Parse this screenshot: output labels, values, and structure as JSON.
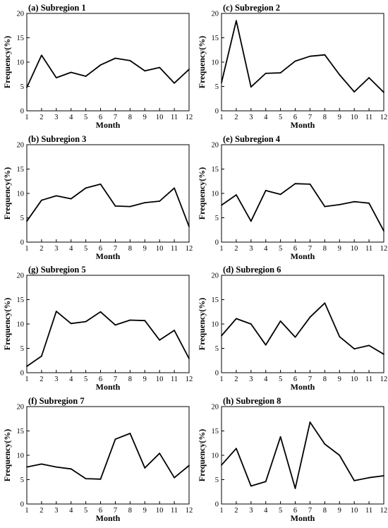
{
  "chart_data": [
    {
      "type": "line",
      "title": "(a) Subregion 1",
      "xlabel": "Month",
      "ylabel": "Frequency(%)",
      "x": [
        1,
        2,
        3,
        4,
        5,
        6,
        7,
        8,
        9,
        10,
        11,
        12
      ],
      "values": [
        4.8,
        11.4,
        6.8,
        7.9,
        7.1,
        9.4,
        10.8,
        10.3,
        8.2,
        8.9,
        5.7,
        8.5
      ],
      "xlim": [
        1,
        12
      ],
      "ylim": [
        0,
        20
      ],
      "yticks": [
        0,
        5,
        10,
        15,
        20
      ],
      "grid": false
    },
    {
      "type": "line",
      "title": "(c) Subregion 2",
      "xlabel": "Month",
      "ylabel": "Frequency(%)",
      "x": [
        1,
        2,
        3,
        4,
        5,
        6,
        7,
        8,
        9,
        10,
        11,
        12
      ],
      "values": [
        5.8,
        18.5,
        4.9,
        7.7,
        7.8,
        10.2,
        11.2,
        11.5,
        7.4,
        3.9,
        6.8,
        3.8
      ],
      "xlim": [
        1,
        12
      ],
      "ylim": [
        0,
        20
      ],
      "yticks": [
        0,
        5,
        10,
        15,
        20
      ],
      "grid": false
    },
    {
      "type": "line",
      "title": "(b) Subregion 3",
      "xlabel": "Month",
      "ylabel": "Frequency(%)",
      "x": [
        1,
        2,
        3,
        4,
        5,
        6,
        7,
        8,
        9,
        10,
        11,
        12
      ],
      "values": [
        4.3,
        8.6,
        9.5,
        8.9,
        11.1,
        11.9,
        7.4,
        7.3,
        8.1,
        8.4,
        11.1,
        3.2
      ],
      "xlim": [
        1,
        12
      ],
      "ylim": [
        0,
        20
      ],
      "yticks": [
        0,
        5,
        10,
        15,
        20
      ],
      "grid": false
    },
    {
      "type": "line",
      "title": "(e) Subregion 4",
      "xlabel": "Month",
      "ylabel": "Frequency(%)",
      "x": [
        1,
        2,
        3,
        4,
        5,
        6,
        7,
        8,
        9,
        10,
        11,
        12
      ],
      "values": [
        7.6,
        9.7,
        4.3,
        10.6,
        9.8,
        12.0,
        11.9,
        7.3,
        7.7,
        8.3,
        8.0,
        2.3
      ],
      "xlim": [
        1,
        12
      ],
      "ylim": [
        0,
        20
      ],
      "yticks": [
        0,
        5,
        10,
        15,
        20
      ],
      "grid": false
    },
    {
      "type": "line",
      "title": "(g) Subregion 5",
      "xlabel": "Month",
      "ylabel": "Frequency(%)",
      "x": [
        1,
        2,
        3,
        4,
        5,
        6,
        7,
        8,
        9,
        10,
        11,
        12
      ],
      "values": [
        1.3,
        3.4,
        12.6,
        10.1,
        10.5,
        12.5,
        9.8,
        10.8,
        10.7,
        6.7,
        8.7,
        2.9
      ],
      "xlim": [
        1,
        12
      ],
      "ylim": [
        0,
        20
      ],
      "yticks": [
        0,
        5,
        10,
        15,
        20
      ],
      "grid": false
    },
    {
      "type": "line",
      "title": "(d) Subregion 6",
      "xlabel": "Month",
      "ylabel": "Frequency(%)",
      "x": [
        1,
        2,
        3,
        4,
        5,
        6,
        7,
        8,
        9,
        10,
        11,
        12
      ],
      "values": [
        7.6,
        11.1,
        10.0,
        5.7,
        10.6,
        7.3,
        11.4,
        14.3,
        7.4,
        4.9,
        5.6,
        3.8
      ],
      "xlim": [
        1,
        12
      ],
      "ylim": [
        0,
        20
      ],
      "yticks": [
        0,
        5,
        10,
        15,
        20
      ],
      "grid": false
    },
    {
      "type": "line",
      "title": "(f) Subregion 7",
      "xlabel": "Month",
      "ylabel": "Frequency(%)",
      "x": [
        1,
        2,
        3,
        4,
        5,
        6,
        7,
        8,
        9,
        10,
        11,
        12
      ],
      "values": [
        7.6,
        8.2,
        7.6,
        7.2,
        5.2,
        5.1,
        13.3,
        14.5,
        7.4,
        10.4,
        5.4,
        7.9
      ],
      "xlim": [
        1,
        12
      ],
      "ylim": [
        0,
        20
      ],
      "yticks": [
        0,
        5,
        10,
        15,
        20
      ],
      "grid": false
    },
    {
      "type": "line",
      "title": "(h) Subregion 8",
      "xlabel": "Month",
      "ylabel": "Frequency(%)",
      "x": [
        1,
        2,
        3,
        4,
        5,
        6,
        7,
        8,
        9,
        10,
        11,
        12
      ],
      "values": [
        8.0,
        11.4,
        3.7,
        4.6,
        13.8,
        3.2,
        16.8,
        12.3,
        10.0,
        4.8,
        5.4,
        5.8
      ],
      "xlim": [
        1,
        12
      ],
      "ylim": [
        0,
        20
      ],
      "yticks": [
        0,
        5,
        10,
        15,
        20
      ],
      "grid": false
    }
  ]
}
